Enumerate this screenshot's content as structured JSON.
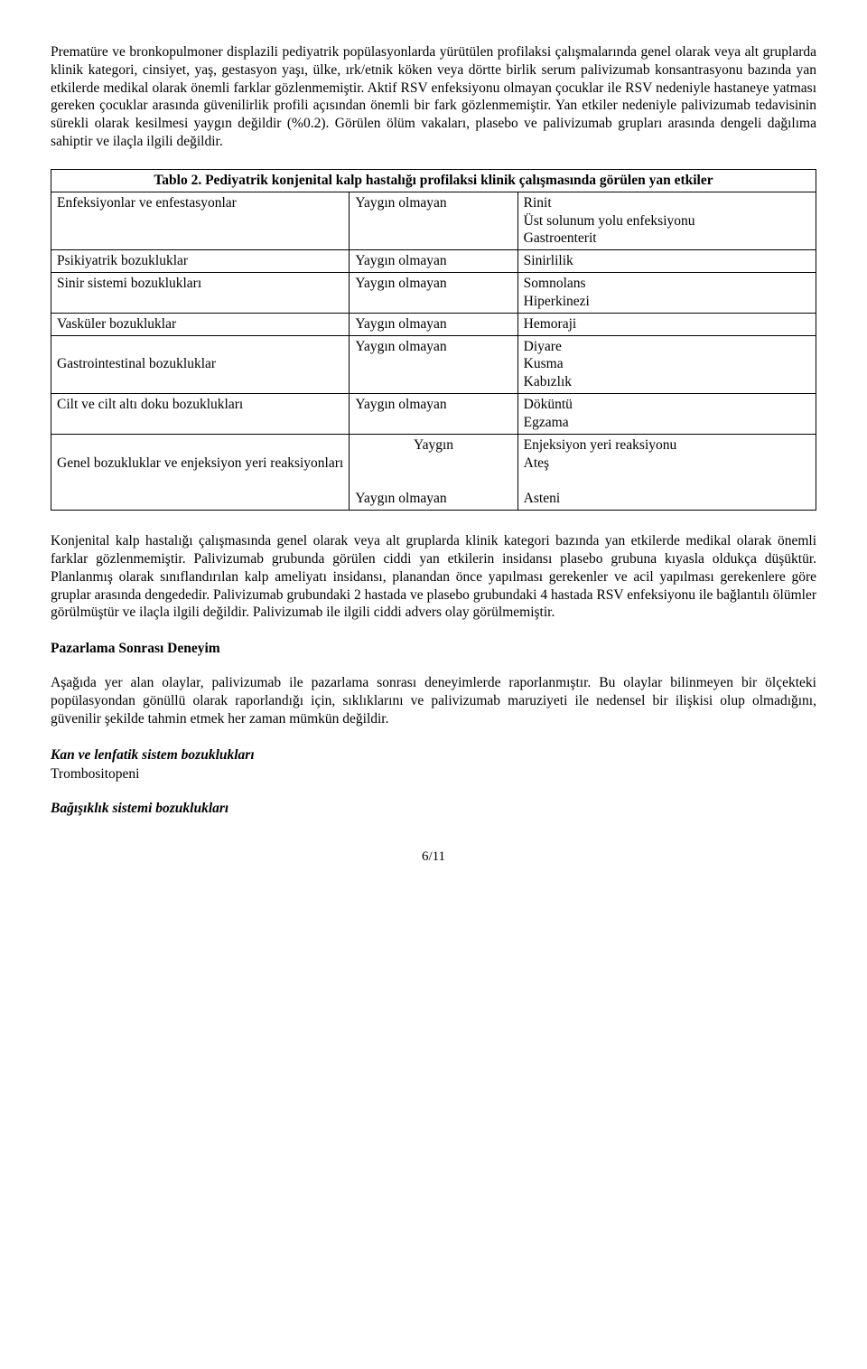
{
  "para1": "Prematüre ve bronkopulmoner displazili pediyatrik popülasyonlarda yürütülen profilaksi çalışmalarında genel olarak veya alt gruplarda klinik kategori, cinsiyet, yaş, gestasyon yaşı, ülke, ırk/etnik köken veya dörtte birlik serum palivizumab konsantrasyonu bazında yan etkilerde medikal olarak önemli farklar gözlenmemiştir. Aktif RSV enfeksiyonu olmayan çocuklar ile RSV nedeniyle hastaneye yatması gereken çocuklar arasında güvenilirlik profili açısından önemli bir fark gözlenmemiştir. Yan etkiler nedeniyle palivizumab tedavisinin sürekli olarak kesilmesi yaygın değildir (%0.2). Görülen ölüm vakaları, plasebo ve palivizumab grupları arasında dengeli dağılıma sahiptir ve ilaçla ilgili değildir.",
  "table2": {
    "title": "Tablo 2. Pediyatrik konjenital kalp hastalığı profilaksi klinik çalışmasında görülen yan etkiler",
    "rows": [
      {
        "c1": "Enfeksiyonlar ve enfestasyonlar",
        "c2": "Yaygın olmayan",
        "c3": "Rinit\nÜst solunum yolu enfeksiyonu\nGastroenterit"
      },
      {
        "c1": "Psikiyatrik bozukluklar",
        "c2": "Yaygın olmayan",
        "c3": "Sinirlilik"
      },
      {
        "c1": "Sinir  sistemi bozuklukları",
        "c2": "Yaygın olmayan",
        "c3": "Somnolans\nHiperkinezi"
      },
      {
        "c1": "Vasküler bozukluklar",
        "c2": "Yaygın olmayan",
        "c3": "Hemoraji"
      },
      {
        "c1": "\nGastrointestinal bozukluklar",
        "c2": "Yaygın olmayan",
        "c3": "Diyare\nKusma\nKabızlık"
      },
      {
        "c1": "Cilt ve cilt altı doku bozuklukları",
        "c2": "Yaygın olmayan",
        "c3": "Döküntü\nEgzama"
      },
      {
        "c1": "\nGenel bozukluklar ve enjeksiyon yeri reaksiyonları",
        "c2": "Yaygın\n\n\nYaygın olmayan",
        "c2align": "center-then-left",
        "c3": "Enjeksiyon yeri reaksiyonu\nAteş\n\nAsteni"
      }
    ]
  },
  "para2": "Konjenital kalp hastalığı çalışmasında genel olarak veya alt gruplarda klinik kategori bazında yan etkilerde medikal olarak önemli farklar gözlenmemiştir. Palivizumab grubunda görülen ciddi yan etkilerin insidansı plasebo grubuna kıyasla oldukça düşüktür. Planlanmış olarak sınıflandırılan kalp ameliyatı insidansı, planandan önce yapılması gerekenler  ve acil yapılması gerekenlere göre gruplar arasında dengededir. Palivizumab grubundaki 2 hastada ve plasebo grubundaki 4 hastada RSV enfeksiyonu ile bağlantılı ölümler görülmüştür ve ilaçla ilgili değildir. Palivizumab ile ilgili ciddi advers olay görülmemiştir.",
  "heading1": "Pazarlama Sonrası Deneyim",
  "para3": "Aşağıda yer alan olaylar, palivizumab ile pazarlama sonrası deneyimlerde raporlanmıştır. Bu olaylar bilinmeyen bir ölçekteki popülasyondan gönüllü olarak raporlandığı için, sıklıklarını ve palivizumab maruziyeti ile nedensel bir ilişkisi olup olmadığını, güvenilir şekilde tahmin etmek her zaman mümkün değildir.",
  "sub1_h": "Kan ve lenfatik sistem bozuklukları",
  "sub1_b": "Trombositopeni",
  "sub2_h": "Bağışıklık sistemi bozuklukları",
  "pagenum": "6/11"
}
